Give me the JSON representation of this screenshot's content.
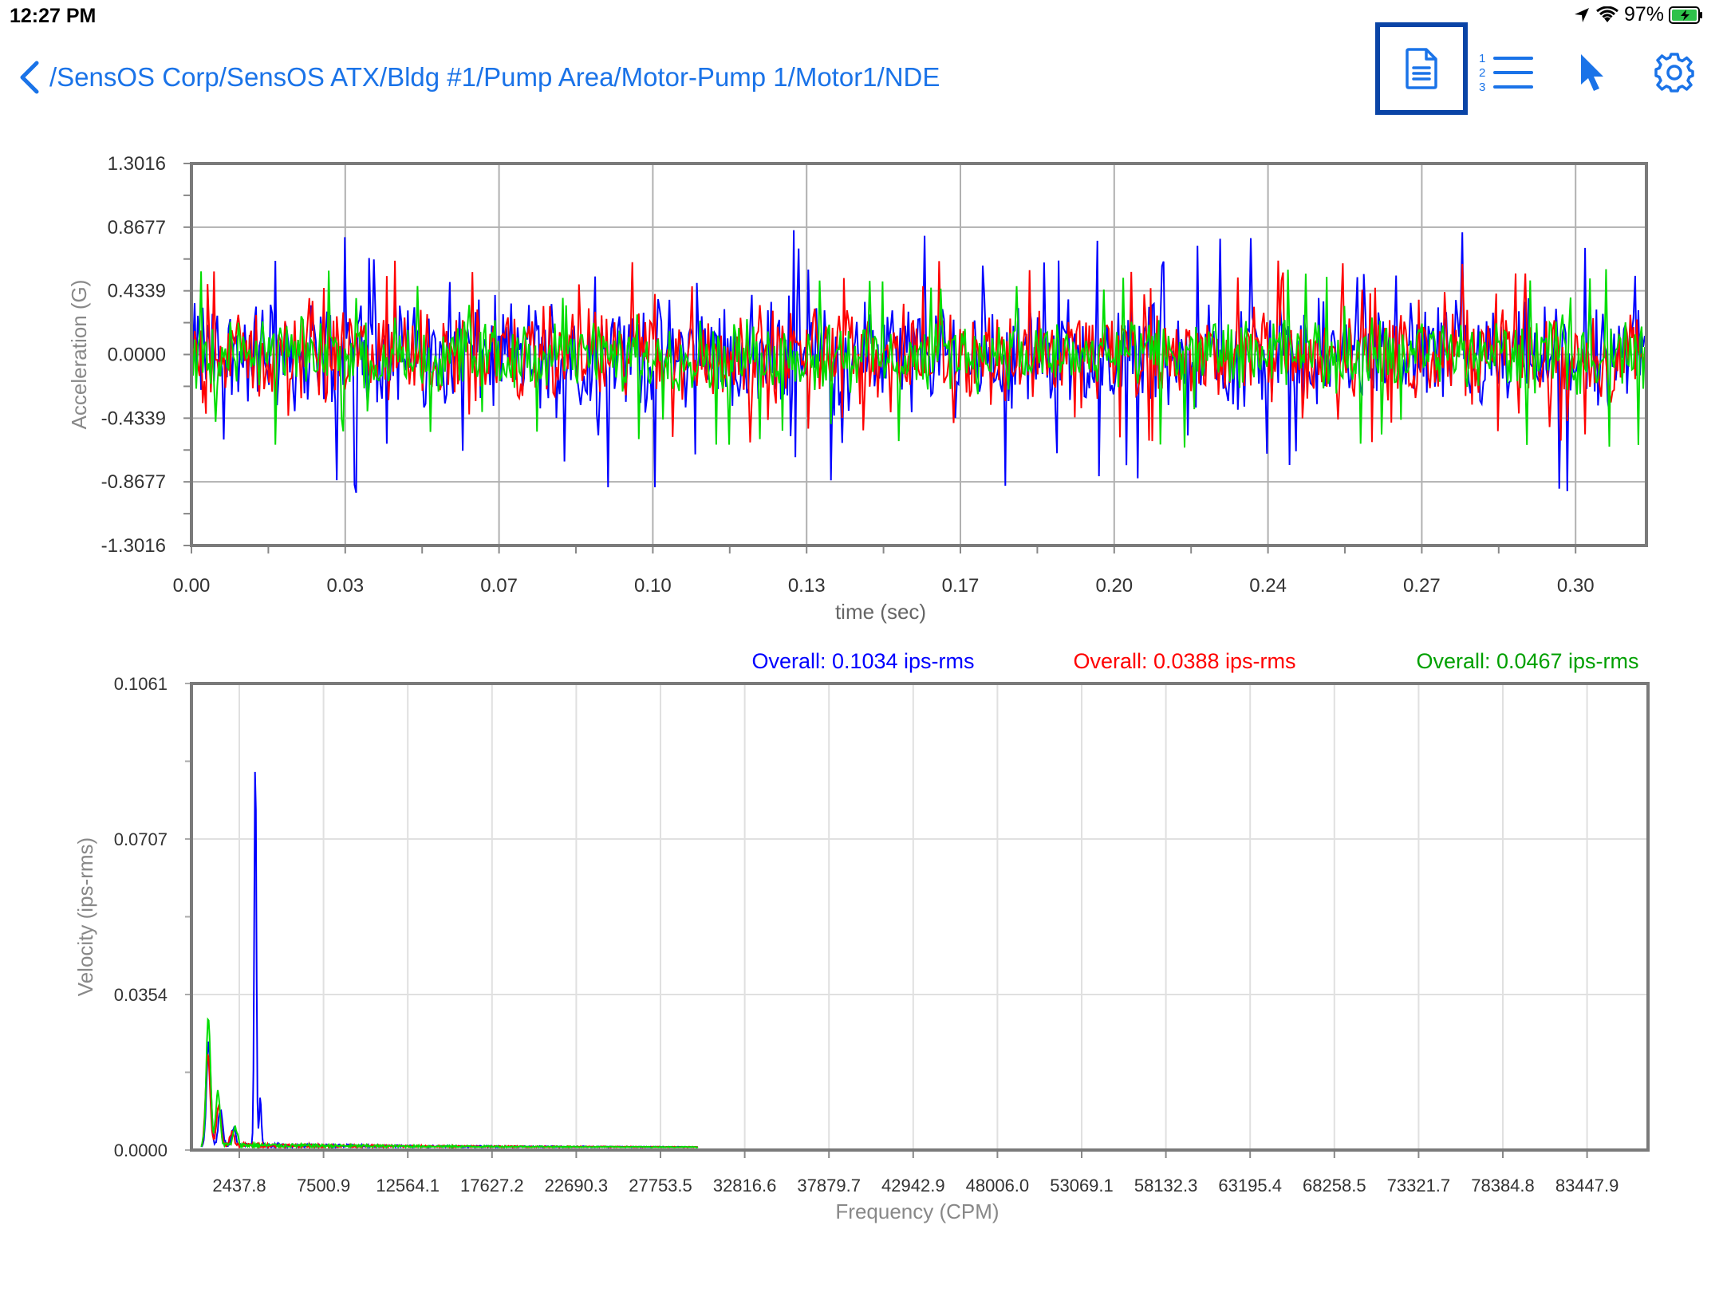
{
  "status_bar": {
    "time": "12:27 PM",
    "battery": "97%"
  },
  "nav": {
    "breadcrumb": "/SensOS Corp/SensOS ATX/Bldg #1/Pump Area/Motor-Pump 1/Motor1/NDE",
    "icons": {
      "back": "chevron-left-icon",
      "report": "document-icon",
      "list": "numbered-list-icon",
      "cursor": "cursor-arrow-icon",
      "settings": "gear-icon"
    }
  },
  "colors": {
    "accent": "#1a73e8",
    "selected_border": "#0a44a6",
    "series_x": "#0000ff",
    "series_y": "#ff0000",
    "series_z": "#00dd00"
  },
  "chart_data": [
    {
      "type": "line",
      "title": "",
      "xlabel": "time (sec)",
      "ylabel": "Acceleration (G)",
      "xlim": [
        0,
        0.318
      ],
      "ylim": [
        -1.3016,
        1.3016
      ],
      "x_ticks": [
        "0.00",
        "0.03",
        "0.07",
        "0.10",
        "0.13",
        "0.17",
        "0.20",
        "0.24",
        "0.27",
        "0.30"
      ],
      "y_ticks": [
        "1.3016",
        "0.8677",
        "0.4339",
        "0.0000",
        "-0.4339",
        "-0.8677",
        "-1.3016"
      ],
      "grid": true,
      "series": [
        {
          "color": "#0000ff",
          "amplitude_range": [
            -0.95,
            0.88
          ],
          "typical_peak": 0.55
        },
        {
          "color": "#ff0000",
          "amplitude_range": [
            -0.6,
            0.65
          ],
          "typical_peak": 0.45
        },
        {
          "color": "#00dd00",
          "amplitude_range": [
            -0.65,
            0.6
          ],
          "typical_peak": 0.35
        }
      ]
    },
    {
      "type": "line",
      "title": "",
      "xlabel": "Frequency (CPM)",
      "ylabel": "Velocity (ips-rms)",
      "ylim": [
        0,
        0.1061
      ],
      "x_ticks": [
        "2437.8",
        "7500.9",
        "12564.1",
        "17627.2",
        "22690.3",
        "27753.5",
        "32816.6",
        "37879.7",
        "42942.9",
        "48006.0",
        "53069.1",
        "58132.3",
        "63195.4",
        "68258.5",
        "73321.7",
        "78384.8",
        "83447.9"
      ],
      "y_ticks": [
        "0.1061",
        "0.0707",
        "0.0354",
        "0.0000"
      ],
      "grid": true,
      "overall_labels": [
        {
          "text": "Overall: 0.1034 ips-rms",
          "color": "#0000ff"
        },
        {
          "text": "Overall: 0.0388 ips-rms",
          "color": "#ff0000"
        },
        {
          "text": "Overall: 0.0467 ips-rms",
          "color": "#00a000"
        }
      ],
      "series": [
        {
          "color": "#0000ff",
          "peaks": [
            [
              600,
              0.023
            ],
            [
              1300,
              0.008
            ],
            [
              2100,
              0.004
            ],
            [
              3400,
              0.088
            ],
            [
              3700,
              0.011
            ]
          ]
        },
        {
          "color": "#ff0000",
          "peaks": [
            [
              550,
              0.021
            ],
            [
              1200,
              0.009
            ],
            [
              2000,
              0.003
            ]
          ]
        },
        {
          "color": "#00dd00",
          "peaks": [
            [
              580,
              0.029
            ],
            [
              1150,
              0.012
            ],
            [
              2200,
              0.004
            ]
          ]
        }
      ]
    }
  ]
}
